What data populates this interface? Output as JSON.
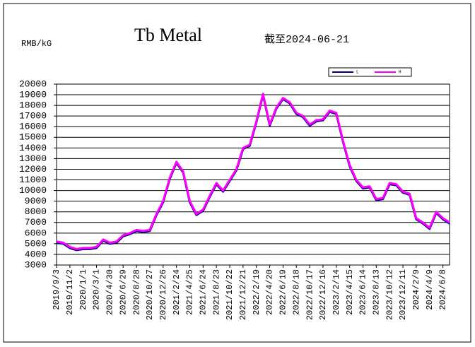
{
  "chart_data": {
    "type": "line",
    "title": "Tb Metal",
    "subtitle": "截至2024-06-21",
    "y_label": "RMB/kG",
    "categories": [
      "2019/9/3",
      null,
      "2019/11/2",
      null,
      "2020/1/1",
      null,
      "2020/3/1",
      null,
      "2020/4/30",
      null,
      "2020/6/29",
      null,
      "2020/8/28",
      null,
      "2020/10/27",
      null,
      "2020/12/26",
      null,
      "2021/2/24",
      null,
      "2021/4/25",
      null,
      "2021/6/24",
      null,
      "2021/8/23",
      null,
      "2021/10/22",
      null,
      "2021/12/21",
      null,
      "2022/2/19",
      null,
      "2022/4/20",
      null,
      "2022/6/19",
      null,
      "2022/8/18",
      null,
      "2022/10/17",
      null,
      "2022/12/16",
      null,
      "2023/2/14",
      null,
      "2023/4/15",
      null,
      "2023/6/14",
      null,
      "2023/8/13",
      null,
      "2023/10/12",
      null,
      "2023/12/11",
      null,
      "2024/2/9",
      null,
      "2024/4/9",
      null,
      "2024/6/8",
      null
    ],
    "series": [
      {
        "name": "L",
        "color": "#000080",
        "values": [
          5100,
          5000,
          4600,
          4400,
          4500,
          4500,
          4600,
          5300,
          5000,
          5100,
          5700,
          5900,
          6200,
          6100,
          6200,
          7700,
          8900,
          11100,
          12600,
          11700,
          8900,
          7700,
          8100,
          9400,
          10600,
          9900,
          10900,
          11900,
          13900,
          14200,
          16400,
          19000,
          16100,
          17700,
          18600,
          18200,
          17200,
          16900,
          16100,
          16500,
          16600,
          17400,
          17200,
          14600,
          12300,
          10900,
          10200,
          10300,
          9100,
          9200,
          10600,
          10500,
          9800,
          9600,
          7300,
          6900,
          6400,
          7900,
          7300,
          6900
        ]
      },
      {
        "name": "H",
        "color": "#ff00ff",
        "values": [
          5200,
          5100,
          4700,
          4500,
          4600,
          4600,
          4700,
          5400,
          5100,
          5200,
          5800,
          6000,
          6300,
          6200,
          6300,
          7800,
          9000,
          11200,
          12700,
          11800,
          9000,
          7800,
          8200,
          9500,
          10700,
          10000,
          11000,
          12000,
          14000,
          14300,
          16500,
          19100,
          16200,
          17800,
          18700,
          18300,
          17300,
          17000,
          16200,
          16600,
          16700,
          17500,
          17300,
          14700,
          12400,
          11000,
          10300,
          10400,
          9200,
          9300,
          10700,
          10600,
          9900,
          9700,
          7400,
          7000,
          6500,
          8000,
          7400,
          7000
        ]
      }
    ],
    "ylim": [
      3000,
      20000
    ],
    "yticks": [
      3000,
      4000,
      5000,
      6000,
      7000,
      8000,
      9000,
      10000,
      11000,
      12000,
      13000,
      14000,
      15000,
      16000,
      17000,
      18000,
      19000,
      20000
    ],
    "grid": true,
    "legend": "top-right"
  }
}
